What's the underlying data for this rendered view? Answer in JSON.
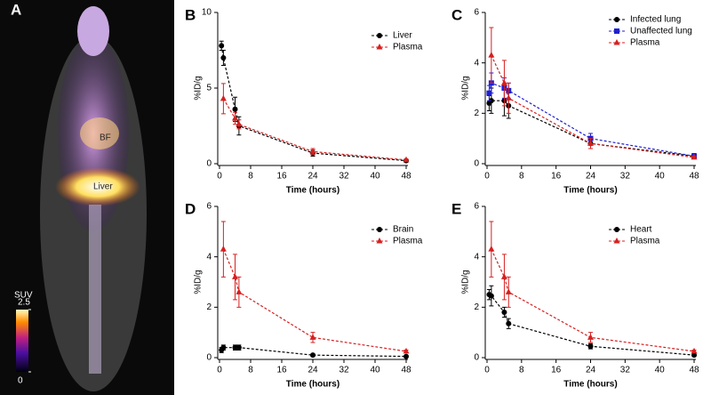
{
  "chart_data": [
    {
      "type": "image",
      "panel": "A",
      "annotations": [
        "BF",
        "Liver"
      ],
      "colorbar_title": "SUV",
      "colorbar_ticks": [
        0,
        2.5
      ]
    },
    {
      "type": "line",
      "panel": "B",
      "x_label": "Time (hours)",
      "y_label": "%ID/g",
      "x": [
        0.5,
        1,
        4,
        5,
        24,
        48
      ],
      "xlim": [
        0,
        48
      ],
      "xticks": [
        0,
        8,
        16,
        24,
        32,
        40,
        48
      ],
      "ylim": [
        0,
        10
      ],
      "yticks": [
        0,
        5,
        10
      ],
      "series": [
        {
          "name": "Liver",
          "color": "#000000",
          "marker": "circle",
          "values": [
            7.8,
            7.0,
            3.6,
            2.5,
            0.7,
            0.2
          ],
          "errors": [
            0.3,
            0.5,
            0.8,
            0.6,
            0.2,
            0.1
          ]
        },
        {
          "name": "Plasma",
          "color": "#d62020",
          "marker": "triangle",
          "values": [
            null,
            4.3,
            3.0,
            2.6,
            0.8,
            0.25
          ],
          "errors": [
            null,
            1.0,
            0.4,
            0.3,
            0.2,
            0.05
          ]
        }
      ]
    },
    {
      "type": "line",
      "panel": "C",
      "x_label": "Time (hours)",
      "y_label": "%ID/g",
      "x": [
        0.5,
        1,
        4,
        5,
        24,
        48
      ],
      "xlim": [
        0,
        48
      ],
      "xticks": [
        0,
        8,
        16,
        24,
        32,
        40,
        48
      ],
      "ylim": [
        0,
        6
      ],
      "yticks": [
        0,
        2,
        4,
        6
      ],
      "series": [
        {
          "name": "Infected lung",
          "color": "#000000",
          "marker": "circle",
          "values": [
            2.4,
            2.5,
            2.5,
            2.3,
            0.8,
            0.3
          ],
          "errors": [
            0.3,
            0.5,
            0.6,
            0.5,
            0.2,
            0.1
          ]
        },
        {
          "name": "Unaffected lung",
          "color": "#1f1fd0",
          "marker": "square",
          "values": [
            2.8,
            3.2,
            3.0,
            2.9,
            1.0,
            0.3
          ],
          "errors": [
            0.3,
            0.4,
            0.4,
            0.3,
            0.2,
            0.1
          ]
        },
        {
          "name": "Plasma",
          "color": "#d62020",
          "marker": "triangle",
          "values": [
            null,
            4.3,
            3.2,
            2.6,
            0.8,
            0.25
          ],
          "errors": [
            null,
            1.1,
            0.9,
            0.6,
            0.2,
            0.05
          ]
        }
      ]
    },
    {
      "type": "line",
      "panel": "D",
      "x_label": "Time (hours)",
      "y_label": "%ID/g",
      "x": [
        0.5,
        1,
        4,
        5,
        24,
        48
      ],
      "xlim": [
        0,
        48
      ],
      "xticks": [
        0,
        8,
        16,
        24,
        32,
        40,
        48
      ],
      "ylim": [
        0,
        6
      ],
      "yticks": [
        0,
        2,
        4,
        6
      ],
      "series": [
        {
          "name": "Brain",
          "color": "#000000",
          "marker": "circle",
          "values": [
            0.3,
            0.4,
            0.4,
            0.4,
            0.1,
            0.05
          ],
          "errors": [
            0.1,
            0.1,
            0.1,
            0.1,
            0.05,
            0.02
          ]
        },
        {
          "name": "Plasma",
          "color": "#d62020",
          "marker": "triangle",
          "values": [
            null,
            4.3,
            3.2,
            2.6,
            0.8,
            0.25
          ],
          "errors": [
            null,
            1.1,
            0.9,
            0.6,
            0.2,
            0.05
          ]
        }
      ]
    },
    {
      "type": "line",
      "panel": "E",
      "x_label": "Time (hours)",
      "y_label": "%ID/g",
      "x": [
        0.5,
        1,
        4,
        5,
        24,
        48
      ],
      "xlim": [
        0,
        48
      ],
      "xticks": [
        0,
        8,
        16,
        24,
        32,
        40,
        48
      ],
      "ylim": [
        0,
        6
      ],
      "yticks": [
        0,
        2,
        4,
        6
      ],
      "series": [
        {
          "name": "Heart",
          "color": "#000000",
          "marker": "circle",
          "values": [
            2.5,
            2.45,
            1.8,
            1.35,
            0.45,
            0.1
          ],
          "errors": [
            0.2,
            0.4,
            0.2,
            0.2,
            0.1,
            0.05
          ]
        },
        {
          "name": "Plasma",
          "color": "#d62020",
          "marker": "triangle",
          "values": [
            null,
            4.3,
            3.2,
            2.6,
            0.8,
            0.25
          ],
          "errors": [
            null,
            1.1,
            0.9,
            0.6,
            0.2,
            0.05
          ]
        }
      ]
    }
  ]
}
